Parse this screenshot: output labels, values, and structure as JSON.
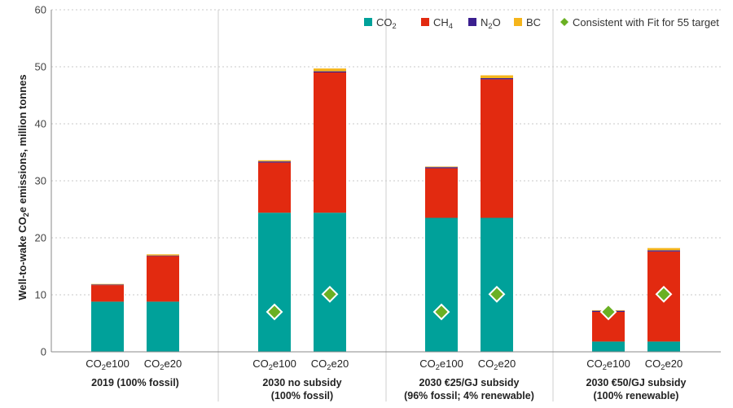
{
  "chart_data": {
    "type": "bar",
    "stacked": true,
    "ylabel": "Well-to-wake CO2e emissions, million tonnes",
    "ylim": [
      0,
      60
    ],
    "yticks": [
      0,
      10,
      20,
      30,
      40,
      50,
      60
    ],
    "grid": true,
    "legend_position": "top-right",
    "legend": [
      {
        "key": "CO2",
        "label": "CO2",
        "color": "#00a19a"
      },
      {
        "key": "CH4",
        "label": "CH4",
        "color": "#e22a10"
      },
      {
        "key": "N2O",
        "label": "N2O",
        "color": "#3b1f8f"
      },
      {
        "key": "BC",
        "label": "BC",
        "color": "#f5b51b"
      },
      {
        "key": "target",
        "label": "Consistent with Fit for 55 target",
        "color": "#6ab023",
        "marker": "diamond"
      }
    ],
    "groups": [
      {
        "label_lines": [
          "2019 (100% fossil)"
        ],
        "bars": [
          {
            "label": "CO2e100",
            "CO2": 8.8,
            "CH4": 2.9,
            "N2O": 0.1,
            "BC": 0.1,
            "target": null
          },
          {
            "label": "CO2e20",
            "CO2": 8.8,
            "CH4": 8.0,
            "N2O": 0.1,
            "BC": 0.2,
            "target": null
          }
        ]
      },
      {
        "label_lines": [
          "2030 no subsidy",
          "(100% fossil)"
        ],
        "bars": [
          {
            "label": "CO2e100",
            "CO2": 24.4,
            "CH4": 8.8,
            "N2O": 0.2,
            "BC": 0.2,
            "target": 7.0
          },
          {
            "label": "CO2e20",
            "CO2": 24.4,
            "CH4": 24.6,
            "N2O": 0.2,
            "BC": 0.5,
            "target": 10.1
          }
        ]
      },
      {
        "label_lines": [
          "2030 €25/GJ subsidy",
          "(96% fossil; 4% renewable)"
        ],
        "bars": [
          {
            "label": "CO2e100",
            "CO2": 23.5,
            "CH4": 8.7,
            "N2O": 0.2,
            "BC": 0.1,
            "target": 7.0
          },
          {
            "label": "CO2e20",
            "CO2": 23.5,
            "CH4": 24.3,
            "N2O": 0.2,
            "BC": 0.5,
            "target": 10.1
          }
        ]
      },
      {
        "label_lines": [
          "2030 €50/GJ subsidy",
          "(100% renewable)"
        ],
        "bars": [
          {
            "label": "CO2e100",
            "CO2": 1.8,
            "CH4": 5.2,
            "N2O": 0.2,
            "BC": 0.1,
            "target": 7.0
          },
          {
            "label": "CO2e20",
            "CO2": 1.8,
            "CH4": 15.8,
            "N2O": 0.2,
            "BC": 0.4,
            "target": 10.1
          }
        ]
      }
    ]
  }
}
